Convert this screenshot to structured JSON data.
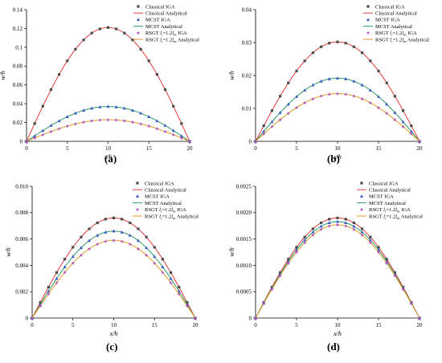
{
  "figure": {
    "panels": [
      {
        "label": "(a)"
      },
      {
        "label": "(b)"
      },
      {
        "label": "(c)"
      },
      {
        "label": "(d)"
      }
    ]
  },
  "legend_entries": [
    {
      "prefix": "Classical IGA",
      "sub": "",
      "mid": "",
      "sub2": "",
      "suffix": "",
      "kind": "marker",
      "marker": "square",
      "color": "#4a4a4a"
    },
    {
      "prefix": "Classical Analytical",
      "sub": "",
      "mid": "",
      "sub2": "",
      "suffix": "",
      "kind": "line",
      "color": "#e23b3b"
    },
    {
      "prefix": "MCST IGA",
      "sub": "",
      "mid": "",
      "sub2": "",
      "suffix": "",
      "kind": "marker",
      "marker": "triangle",
      "color": "#3a56c8"
    },
    {
      "prefix": "MCST Analytical",
      "sub": "",
      "mid": "",
      "sub2": "",
      "suffix": "",
      "kind": "line",
      "color": "#2e9a6a"
    },
    {
      "prefix": "RSGT ",
      "sub": "l",
      "mid": "=1.2",
      "sub2": "l",
      "suffix": " IGA",
      "subIdx": "r",
      "sub2Idx": "m",
      "kind": "marker",
      "marker": "star",
      "color": "#b04fc0"
    },
    {
      "prefix": "RSGT ",
      "sub": "l",
      "mid": "=1.2",
      "sub2": "l",
      "suffix": " Analytical",
      "subIdx": "r",
      "sub2Idx": "m",
      "kind": "line",
      "color": "#e09a2a"
    }
  ],
  "chart_data": [
    {
      "type": "line",
      "panel": "(a)",
      "xlabel": "x/h",
      "ylabel": "w/h",
      "xlim": [
        0,
        20
      ],
      "ylim": [
        0,
        0.14
      ],
      "xticks": [
        0,
        5,
        10,
        15,
        20
      ],
      "yticks": [
        0,
        0.02,
        0.04,
        0.06,
        0.08,
        0.1,
        0.12,
        0.14
      ],
      "ytick_labels": [
        "0",
        "0.02",
        "0.04",
        "0.06",
        "0.08",
        "0.1",
        "0.12",
        "0.14"
      ],
      "peaks": {
        "classical": 0.121,
        "mcst": 0.037,
        "rsgt": 0.023
      },
      "x": [
        0,
        1,
        2,
        3,
        4,
        5,
        6,
        7,
        8,
        9,
        10,
        11,
        12,
        13,
        14,
        15,
        16,
        17,
        18,
        19,
        20
      ],
      "legend": "top-right"
    },
    {
      "type": "line",
      "panel": "(b)",
      "xlabel": "x/h",
      "ylabel": "w/h",
      "xlim": [
        0,
        20
      ],
      "ylim": [
        0,
        0.04
      ],
      "xticks": [
        0,
        5,
        10,
        15,
        20
      ],
      "yticks": [
        0,
        0.01,
        0.02,
        0.03,
        0.04
      ],
      "ytick_labels": [
        "0",
        "0.01",
        "0.02",
        "0.03",
        "0.04"
      ],
      "peaks": {
        "classical": 0.0302,
        "mcst": 0.0192,
        "rsgt": 0.0145
      },
      "x": [
        0,
        1,
        2,
        3,
        4,
        5,
        6,
        7,
        8,
        9,
        10,
        11,
        12,
        13,
        14,
        15,
        16,
        17,
        18,
        19,
        20
      ],
      "legend": "top-right"
    },
    {
      "type": "line",
      "panel": "(c)",
      "xlabel": "x/h",
      "ylabel": "w/h",
      "xlim": [
        0,
        20
      ],
      "ylim": [
        0,
        0.01
      ],
      "xticks": [
        0,
        5,
        10,
        15,
        20
      ],
      "yticks": [
        0,
        0.002,
        0.004,
        0.006,
        0.008,
        0.01
      ],
      "ytick_labels": [
        "0",
        "0.002",
        "0.004",
        "0.006",
        "0.008",
        "0.010"
      ],
      "peaks": {
        "classical": 0.0076,
        "mcst": 0.0066,
        "rsgt": 0.0059
      },
      "x": [
        0,
        1,
        2,
        3,
        4,
        5,
        6,
        7,
        8,
        9,
        10,
        11,
        12,
        13,
        14,
        15,
        16,
        17,
        18,
        19,
        20
      ],
      "legend": "top-right"
    },
    {
      "type": "line",
      "panel": "(d)",
      "xlabel": "x/h",
      "ylabel": "w/h",
      "xlim": [
        0,
        20
      ],
      "ylim": [
        0,
        0.0025
      ],
      "xticks": [
        0,
        5,
        10,
        15,
        20
      ],
      "yticks": [
        0,
        0.0005,
        0.001,
        0.0015,
        0.002,
        0.0025
      ],
      "ytick_labels": [
        "0",
        "0.0005",
        "0.0010",
        "0.0015",
        "0.0020",
        "0.0025"
      ],
      "peaks": {
        "classical": 0.0019,
        "mcst": 0.00183,
        "rsgt": 0.00177
      },
      "x": [
        0,
        1,
        2,
        3,
        4,
        5,
        6,
        7,
        8,
        9,
        10,
        11,
        12,
        13,
        14,
        15,
        16,
        17,
        18,
        19,
        20
      ],
      "legend": "top-right"
    }
  ]
}
